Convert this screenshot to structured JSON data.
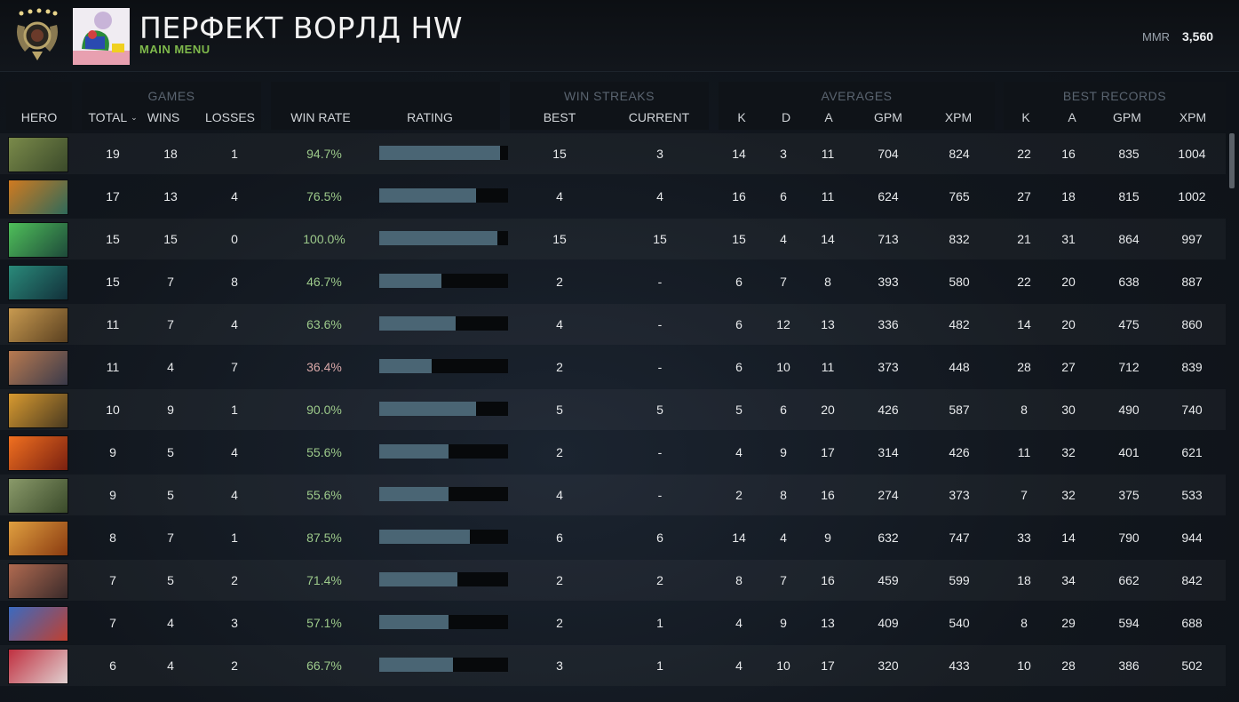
{
  "header": {
    "title": "ПЕРФЕКТ ВОРЛД HW",
    "subtitle": "MAIN MENU",
    "mmr_label": "MMR",
    "mmr_value": "3,560"
  },
  "table": {
    "groups": {
      "games": "GAMES",
      "win_streaks": "WIN STREAKS",
      "averages": "AVERAGES",
      "best_records": "BEST RECORDS"
    },
    "columns": {
      "hero": "HERO",
      "total": "TOTAL",
      "wins": "WINS",
      "losses": "LOSSES",
      "win_rate": "WIN RATE",
      "rating": "RATING",
      "best": "BEST",
      "current": "CURRENT",
      "avg_k": "K",
      "avg_d": "D",
      "avg_a": "A",
      "avg_gpm": "GPM",
      "avg_xpm": "XPM",
      "rec_k": "K",
      "rec_a": "A",
      "rec_gpm": "GPM",
      "rec_xpm": "XPM"
    },
    "rows": [
      {
        "total": "19",
        "wins": "18",
        "losses": "1",
        "win_rate": "94.7%",
        "rating": 0.94,
        "best": "15",
        "current": "3",
        "k": "14",
        "d": "3",
        "a": "11",
        "gpm": "704",
        "xpm": "824",
        "rk": "22",
        "ra": "16",
        "rgpm": "835",
        "rxpm": "1004",
        "good": true,
        "c1": "#7a8a4a",
        "c2": "#3b4a2a"
      },
      {
        "total": "17",
        "wins": "13",
        "losses": "4",
        "win_rate": "76.5%",
        "rating": 0.75,
        "best": "4",
        "current": "4",
        "k": "16",
        "d": "6",
        "a": "11",
        "gpm": "624",
        "xpm": "765",
        "rk": "27",
        "ra": "18",
        "rgpm": "815",
        "rxpm": "1002",
        "good": true,
        "c1": "#d07a20",
        "c2": "#2f6a5a"
      },
      {
        "total": "15",
        "wins": "15",
        "losses": "0",
        "win_rate": "100.0%",
        "rating": 0.92,
        "best": "15",
        "current": "15",
        "k": "15",
        "d": "4",
        "a": "14",
        "gpm": "713",
        "xpm": "832",
        "rk": "21",
        "ra": "31",
        "rgpm": "864",
        "rxpm": "997",
        "good": true,
        "c1": "#4fbf5a",
        "c2": "#1e4a3a"
      },
      {
        "total": "15",
        "wins": "7",
        "losses": "8",
        "win_rate": "46.7%",
        "rating": 0.48,
        "best": "2",
        "current": "-",
        "k": "6",
        "d": "7",
        "a": "8",
        "gpm": "393",
        "xpm": "580",
        "rk": "22",
        "ra": "20",
        "rgpm": "638",
        "rxpm": "887",
        "good": true,
        "c1": "#2a8a7a",
        "c2": "#12303a"
      },
      {
        "total": "11",
        "wins": "7",
        "losses": "4",
        "win_rate": "63.6%",
        "rating": 0.59,
        "best": "4",
        "current": "-",
        "k": "6",
        "d": "12",
        "a": "13",
        "gpm": "336",
        "xpm": "482",
        "rk": "14",
        "ra": "20",
        "rgpm": "475",
        "rxpm": "860",
        "good": true,
        "c1": "#c89a50",
        "c2": "#5a4020"
      },
      {
        "total": "11",
        "wins": "4",
        "losses": "7",
        "win_rate": "36.4%",
        "rating": 0.41,
        "best": "2",
        "current": "-",
        "k": "6",
        "d": "10",
        "a": "11",
        "gpm": "373",
        "xpm": "448",
        "rk": "28",
        "ra": "27",
        "rgpm": "712",
        "rxpm": "839",
        "good": false,
        "c1": "#b87a50",
        "c2": "#3a3a4a"
      },
      {
        "total": "10",
        "wins": "9",
        "losses": "1",
        "win_rate": "90.0%",
        "rating": 0.75,
        "best": "5",
        "current": "5",
        "k": "5",
        "d": "6",
        "a": "20",
        "gpm": "426",
        "xpm": "587",
        "rk": "8",
        "ra": "30",
        "rgpm": "490",
        "rxpm": "740",
        "good": true,
        "c1": "#d89a30",
        "c2": "#4a3a20"
      },
      {
        "total": "9",
        "wins": "5",
        "losses": "4",
        "win_rate": "55.6%",
        "rating": 0.54,
        "best": "2",
        "current": "-",
        "k": "4",
        "d": "9",
        "a": "17",
        "gpm": "314",
        "xpm": "426",
        "rk": "11",
        "ra": "32",
        "rgpm": "401",
        "rxpm": "621",
        "good": true,
        "c1": "#f07020",
        "c2": "#7a2010"
      },
      {
        "total": "9",
        "wins": "5",
        "losses": "4",
        "win_rate": "55.6%",
        "rating": 0.54,
        "best": "4",
        "current": "-",
        "k": "2",
        "d": "8",
        "a": "16",
        "gpm": "274",
        "xpm": "373",
        "rk": "7",
        "ra": "32",
        "rgpm": "375",
        "rxpm": "533",
        "good": true,
        "c1": "#8a9a6a",
        "c2": "#3a4a2a"
      },
      {
        "total": "8",
        "wins": "7",
        "losses": "1",
        "win_rate": "87.5%",
        "rating": 0.7,
        "best": "6",
        "current": "6",
        "k": "14",
        "d": "4",
        "a": "9",
        "gpm": "632",
        "xpm": "747",
        "rk": "33",
        "ra": "14",
        "rgpm": "790",
        "rxpm": "944",
        "good": true,
        "c1": "#e0a040",
        "c2": "#8a3a10"
      },
      {
        "total": "7",
        "wins": "5",
        "losses": "2",
        "win_rate": "71.4%",
        "rating": 0.61,
        "best": "2",
        "current": "2",
        "k": "8",
        "d": "7",
        "a": "16",
        "gpm": "459",
        "xpm": "599",
        "rk": "18",
        "ra": "34",
        "rgpm": "662",
        "rxpm": "842",
        "good": true,
        "c1": "#b06a50",
        "c2": "#3a2a2a"
      },
      {
        "total": "7",
        "wins": "4",
        "losses": "3",
        "win_rate": "57.1%",
        "rating": 0.54,
        "best": "2",
        "current": "1",
        "k": "4",
        "d": "9",
        "a": "13",
        "gpm": "409",
        "xpm": "540",
        "rk": "8",
        "ra": "29",
        "rgpm": "594",
        "rxpm": "688",
        "good": true,
        "c1": "#3a6ac0",
        "c2": "#c04030"
      },
      {
        "total": "6",
        "wins": "4",
        "losses": "2",
        "win_rate": "66.7%",
        "rating": 0.57,
        "best": "3",
        "current": "1",
        "k": "4",
        "d": "10",
        "a": "17",
        "gpm": "320",
        "xpm": "433",
        "rk": "10",
        "ra": "28",
        "rgpm": "386",
        "rxpm": "502",
        "good": true,
        "c1": "#c03040",
        "c2": "#e0d0d0"
      }
    ]
  }
}
